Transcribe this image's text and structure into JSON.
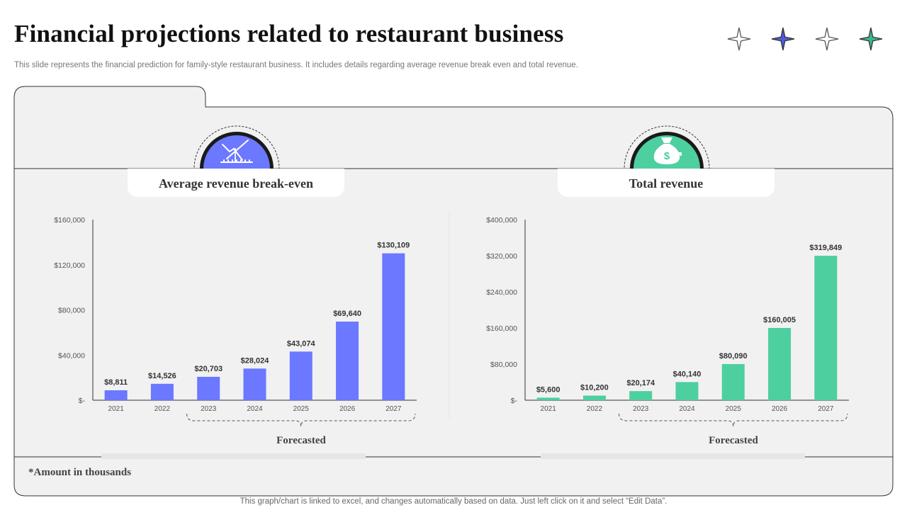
{
  "header": {
    "title": "Financial projections related to restaurant business",
    "subtitle": "This slide represents the financial prediction for family-style restaurant business. It includes details regarding average revenue break even and total revenue."
  },
  "decorations": {
    "stars": [
      {
        "icon": "sparkle-outline-icon",
        "color": "#555555",
        "filled": false
      },
      {
        "icon": "sparkle-filled-icon",
        "color": "#4f5bd5",
        "filled": true
      },
      {
        "icon": "sparkle-outline-icon",
        "color": "#555555",
        "filled": false
      },
      {
        "icon": "sparkle-filled-icon",
        "color": "#3cb88a",
        "filled": true
      }
    ]
  },
  "cards": [
    {
      "title": "Average revenue break-even",
      "icon": "break-even-chart-icon",
      "accent": "#6b78ff",
      "ring": "#1a1a1a",
      "forecast_label": "Forecasted"
    },
    {
      "title": "Total revenue",
      "icon": "money-bag-icon",
      "accent": "#4ecfa0",
      "ring": "#1a1a1a",
      "forecast_label": "Forecasted"
    }
  ],
  "chart_data": [
    {
      "type": "bar",
      "title": "Average revenue break-even",
      "categories": [
        "2021",
        "2022",
        "2023",
        "2024",
        "2025",
        "2026",
        "2027"
      ],
      "values": [
        8811,
        14526,
        20703,
        28024,
        43074,
        69640,
        130109
      ],
      "value_labels": [
        "$8,811",
        "$14,526",
        "$20,703",
        "$28,024",
        "$43,074",
        "$69,640",
        "$130,109"
      ],
      "y_ticks": [
        0,
        40000,
        80000,
        120000,
        160000
      ],
      "y_tick_labels": [
        "$-",
        "$40,000",
        "$80,000",
        "$120,000",
        "$160,000"
      ],
      "ylim": [
        0,
        160000
      ],
      "color": "#6b78ff",
      "grid": false,
      "forecast_range": [
        "2023",
        "2027"
      ]
    },
    {
      "type": "bar",
      "title": "Total revenue",
      "categories": [
        "2021",
        "2022",
        "2023",
        "2024",
        "2025",
        "2026",
        "2027"
      ],
      "values": [
        5600,
        10200,
        20174,
        40140,
        80090,
        160005,
        319849
      ],
      "value_labels": [
        "$5,600",
        "$10,200",
        "$20,174",
        "$40,140",
        "$80,090",
        "$160,005",
        "$319,849"
      ],
      "y_ticks": [
        0,
        80000,
        160000,
        240000,
        320000,
        400000
      ],
      "y_tick_labels": [
        "$-",
        "$80,000",
        "$160,000",
        "$240,000",
        "$320,000",
        "$400,000"
      ],
      "ylim": [
        0,
        400000
      ],
      "color": "#4ecfa0",
      "grid": false,
      "forecast_range": [
        "2023",
        "2027"
      ]
    }
  ],
  "note": "*Amount in thousands",
  "footer": "This graph/chart is linked to excel, and changes automatically based on data. Just left click on it and select “Edit Data”."
}
